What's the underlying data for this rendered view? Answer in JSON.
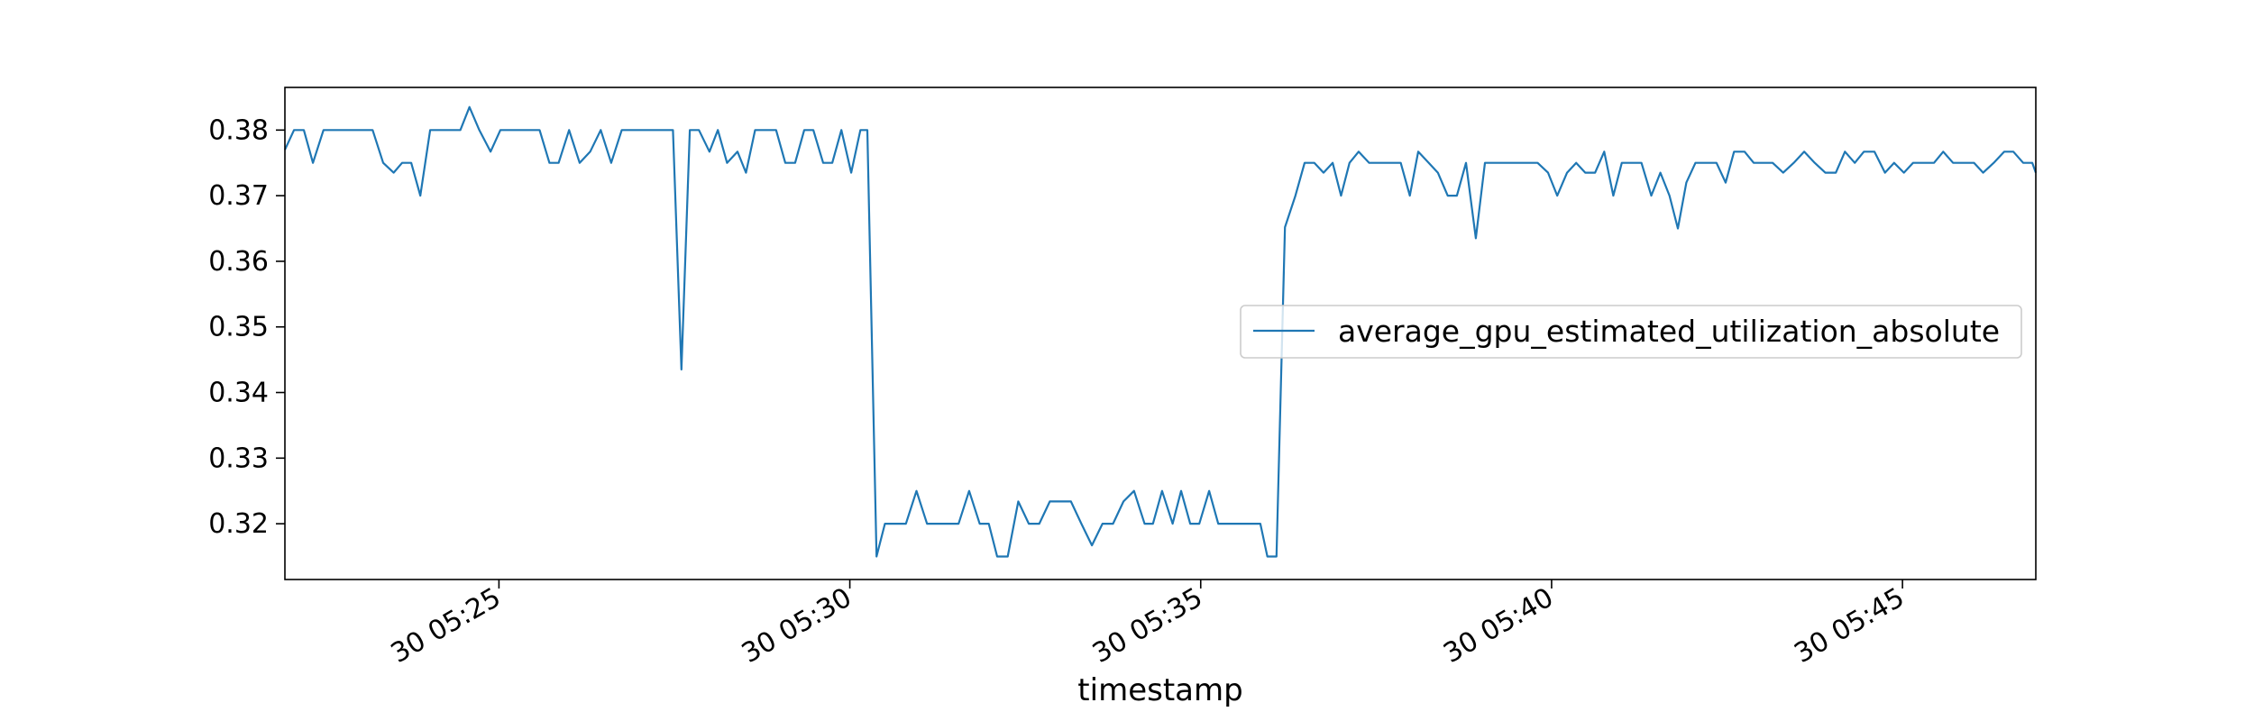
{
  "chart_data": {
    "type": "line",
    "title": "",
    "xlabel": "timestamp",
    "ylabel": "",
    "x_unit": "minutes",
    "x_tick_values": [
      25,
      30,
      35,
      40,
      45
    ],
    "x_tick_labels": [
      "30 05:25",
      "30 05:30",
      "30 05:35",
      "30 05:40",
      "30 05:45"
    ],
    "y_tick_values": [
      0.32,
      0.33,
      0.34,
      0.35,
      0.36,
      0.37,
      0.38
    ],
    "y_tick_labels": [
      "0.32",
      "0.33",
      "0.34",
      "0.35",
      "0.36",
      "0.37",
      "0.38"
    ],
    "xlim": [
      21.95,
      46.9
    ],
    "ylim": [
      0.3115,
      0.3865
    ],
    "legend_position": "center-right",
    "grid": false,
    "series_color": "#1f77b4",
    "series": [
      {
        "name": "average_gpu_estimated_utilization_absolute",
        "points": [
          [
            21.95,
            0.377
          ],
          [
            22.08,
            0.38
          ],
          [
            22.22,
            0.38
          ],
          [
            22.35,
            0.375
          ],
          [
            22.5,
            0.38
          ],
          [
            22.65,
            0.38
          ],
          [
            22.8,
            0.38
          ],
          [
            22.95,
            0.38
          ],
          [
            23.1,
            0.38
          ],
          [
            23.2,
            0.38
          ],
          [
            23.35,
            0.375
          ],
          [
            23.5,
            0.3735
          ],
          [
            23.62,
            0.375
          ],
          [
            23.75,
            0.375
          ],
          [
            23.88,
            0.37
          ],
          [
            24.02,
            0.38
          ],
          [
            24.15,
            0.38
          ],
          [
            24.3,
            0.38
          ],
          [
            24.45,
            0.38
          ],
          [
            24.58,
            0.3835
          ],
          [
            24.72,
            0.38
          ],
          [
            24.88,
            0.3767
          ],
          [
            25.02,
            0.38
          ],
          [
            25.15,
            0.38
          ],
          [
            25.3,
            0.38
          ],
          [
            25.45,
            0.38
          ],
          [
            25.58,
            0.38
          ],
          [
            25.72,
            0.375
          ],
          [
            25.85,
            0.375
          ],
          [
            26.0,
            0.38
          ],
          [
            26.15,
            0.375
          ],
          [
            26.3,
            0.3767
          ],
          [
            26.45,
            0.38
          ],
          [
            26.6,
            0.375
          ],
          [
            26.75,
            0.38
          ],
          [
            26.9,
            0.38
          ],
          [
            27.05,
            0.38
          ],
          [
            27.2,
            0.38
          ],
          [
            27.35,
            0.38
          ],
          [
            27.48,
            0.38
          ],
          [
            27.6,
            0.3435
          ],
          [
            27.72,
            0.38
          ],
          [
            27.85,
            0.38
          ],
          [
            28.0,
            0.3767
          ],
          [
            28.12,
            0.38
          ],
          [
            28.25,
            0.375
          ],
          [
            28.4,
            0.3767
          ],
          [
            28.52,
            0.3735
          ],
          [
            28.65,
            0.38
          ],
          [
            28.8,
            0.38
          ],
          [
            28.95,
            0.38
          ],
          [
            29.08,
            0.375
          ],
          [
            29.22,
            0.375
          ],
          [
            29.35,
            0.38
          ],
          [
            29.48,
            0.38
          ],
          [
            29.62,
            0.375
          ],
          [
            29.75,
            0.375
          ],
          [
            29.88,
            0.38
          ],
          [
            30.02,
            0.3735
          ],
          [
            30.15,
            0.38
          ],
          [
            30.25,
            0.38
          ],
          [
            30.38,
            0.315
          ],
          [
            30.5,
            0.32
          ],
          [
            30.65,
            0.32
          ],
          [
            30.8,
            0.32
          ],
          [
            30.95,
            0.325
          ],
          [
            31.1,
            0.32
          ],
          [
            31.25,
            0.32
          ],
          [
            31.4,
            0.32
          ],
          [
            31.55,
            0.32
          ],
          [
            31.7,
            0.325
          ],
          [
            31.85,
            0.32
          ],
          [
            31.98,
            0.32
          ],
          [
            32.1,
            0.315
          ],
          [
            32.25,
            0.315
          ],
          [
            32.4,
            0.3234
          ],
          [
            32.55,
            0.32
          ],
          [
            32.7,
            0.32
          ],
          [
            32.85,
            0.3234
          ],
          [
            33.0,
            0.3234
          ],
          [
            33.15,
            0.3234
          ],
          [
            33.3,
            0.32
          ],
          [
            33.45,
            0.3167
          ],
          [
            33.6,
            0.32
          ],
          [
            33.75,
            0.32
          ],
          [
            33.9,
            0.3234
          ],
          [
            34.05,
            0.325
          ],
          [
            34.2,
            0.32
          ],
          [
            34.32,
            0.32
          ],
          [
            34.45,
            0.325
          ],
          [
            34.6,
            0.32
          ],
          [
            34.72,
            0.325
          ],
          [
            34.85,
            0.32
          ],
          [
            34.98,
            0.32
          ],
          [
            35.12,
            0.325
          ],
          [
            35.25,
            0.32
          ],
          [
            35.4,
            0.32
          ],
          [
            35.55,
            0.32
          ],
          [
            35.7,
            0.32
          ],
          [
            35.85,
            0.32
          ],
          [
            35.95,
            0.315
          ],
          [
            36.08,
            0.315
          ],
          [
            36.2,
            0.3652
          ],
          [
            36.35,
            0.37
          ],
          [
            36.48,
            0.375
          ],
          [
            36.62,
            0.375
          ],
          [
            36.75,
            0.3735
          ],
          [
            36.88,
            0.375
          ],
          [
            37.0,
            0.37
          ],
          [
            37.12,
            0.375
          ],
          [
            37.25,
            0.3767
          ],
          [
            37.4,
            0.375
          ],
          [
            37.55,
            0.375
          ],
          [
            37.7,
            0.375
          ],
          [
            37.85,
            0.375
          ],
          [
            37.98,
            0.37
          ],
          [
            38.1,
            0.3767
          ],
          [
            38.25,
            0.375
          ],
          [
            38.38,
            0.3735
          ],
          [
            38.52,
            0.37
          ],
          [
            38.65,
            0.37
          ],
          [
            38.78,
            0.375
          ],
          [
            38.92,
            0.3635
          ],
          [
            39.05,
            0.375
          ],
          [
            39.2,
            0.375
          ],
          [
            39.35,
            0.375
          ],
          [
            39.5,
            0.375
          ],
          [
            39.65,
            0.375
          ],
          [
            39.8,
            0.375
          ],
          [
            39.95,
            0.3735
          ],
          [
            40.08,
            0.37
          ],
          [
            40.22,
            0.3735
          ],
          [
            40.35,
            0.375
          ],
          [
            40.48,
            0.3735
          ],
          [
            40.62,
            0.3735
          ],
          [
            40.75,
            0.3767
          ],
          [
            40.88,
            0.37
          ],
          [
            41.0,
            0.375
          ],
          [
            41.15,
            0.375
          ],
          [
            41.28,
            0.375
          ],
          [
            41.42,
            0.37
          ],
          [
            41.55,
            0.3735
          ],
          [
            41.68,
            0.37
          ],
          [
            41.8,
            0.365
          ],
          [
            41.92,
            0.372
          ],
          [
            42.05,
            0.375
          ],
          [
            42.2,
            0.375
          ],
          [
            42.35,
            0.375
          ],
          [
            42.48,
            0.372
          ],
          [
            42.6,
            0.3767
          ],
          [
            42.75,
            0.3767
          ],
          [
            42.88,
            0.375
          ],
          [
            43.02,
            0.375
          ],
          [
            43.15,
            0.375
          ],
          [
            43.3,
            0.3735
          ],
          [
            43.45,
            0.375
          ],
          [
            43.6,
            0.3767
          ],
          [
            43.75,
            0.375
          ],
          [
            43.9,
            0.3735
          ],
          [
            44.05,
            0.3735
          ],
          [
            44.18,
            0.3767
          ],
          [
            44.32,
            0.375
          ],
          [
            44.45,
            0.3767
          ],
          [
            44.6,
            0.3767
          ],
          [
            44.75,
            0.3735
          ],
          [
            44.88,
            0.375
          ],
          [
            45.02,
            0.3735
          ],
          [
            45.15,
            0.375
          ],
          [
            45.3,
            0.375
          ],
          [
            45.45,
            0.375
          ],
          [
            45.58,
            0.3767
          ],
          [
            45.72,
            0.375
          ],
          [
            45.88,
            0.375
          ],
          [
            46.02,
            0.375
          ],
          [
            46.15,
            0.3735
          ],
          [
            46.3,
            0.375
          ],
          [
            46.45,
            0.3767
          ],
          [
            46.58,
            0.3767
          ],
          [
            46.72,
            0.375
          ],
          [
            46.85,
            0.375
          ],
          [
            46.9,
            0.3735
          ]
        ]
      }
    ]
  }
}
